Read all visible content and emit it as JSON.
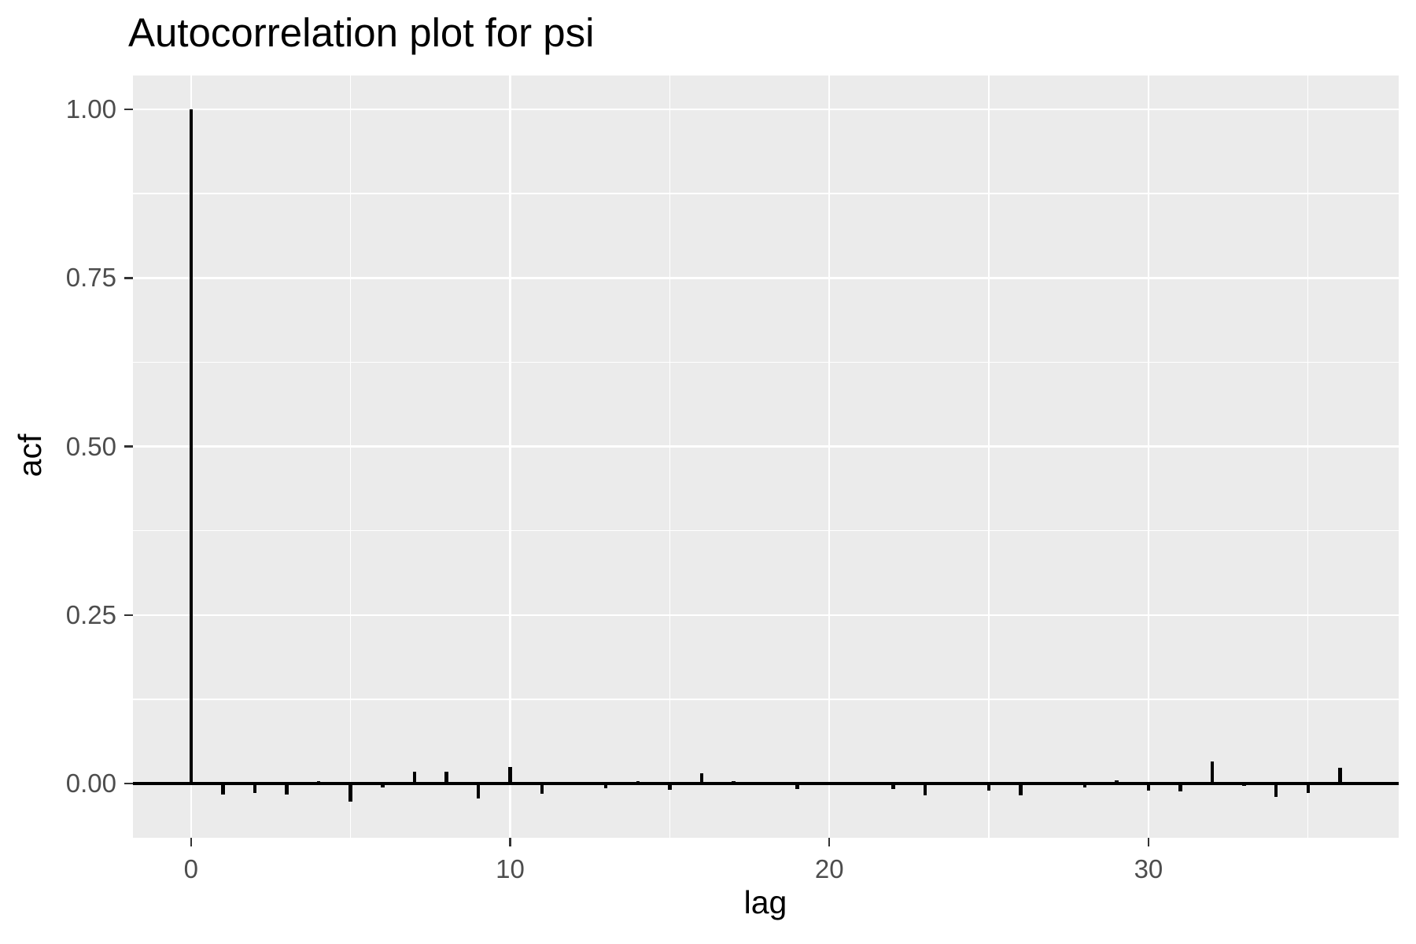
{
  "title": "Autocorrelation plot for psi",
  "chart_data": {
    "type": "bar",
    "title": "Autocorrelation plot for psi",
    "xlabel": "lag",
    "ylabel": "acf",
    "x": [
      0,
      1,
      2,
      3,
      4,
      5,
      6,
      7,
      8,
      9,
      10,
      11,
      12,
      13,
      14,
      15,
      16,
      17,
      18,
      19,
      20,
      21,
      22,
      23,
      24,
      25,
      26,
      27,
      28,
      29,
      30,
      31,
      32,
      33,
      34,
      35,
      36
    ],
    "values": [
      1.0,
      -0.016,
      -0.014,
      -0.016,
      0.004,
      -0.027,
      -0.006,
      0.017,
      0.018,
      -0.022,
      0.025,
      -0.015,
      0.0,
      -0.007,
      0.004,
      -0.009,
      0.015,
      0.003,
      0.0,
      -0.008,
      0.0,
      0.0,
      -0.008,
      -0.017,
      0.0,
      -0.011,
      -0.017,
      0.0,
      -0.006,
      0.005,
      -0.011,
      -0.012,
      0.033,
      -0.003,
      -0.02,
      -0.014,
      0.023
    ],
    "xlim": [
      -1.82,
      37.84
    ],
    "ylim": [
      -0.0805,
      1.0502
    ],
    "x_major_ticks": [
      0,
      10,
      20,
      30
    ],
    "x_tick_labels": [
      "0",
      "10",
      "20",
      "30"
    ],
    "x_minor_ticks": [
      5,
      15,
      25,
      35
    ],
    "y_major_ticks": [
      0.0,
      0.25,
      0.5,
      0.75,
      1.0
    ],
    "y_tick_labels": [
      "0.00",
      "0.25",
      "0.50",
      "0.75",
      "1.00"
    ],
    "y_minor_ticks": [
      0.125,
      0.375,
      0.625,
      0.875
    ],
    "grid": true,
    "legend": "none",
    "zero_line": true
  },
  "colors": {
    "panel_background": "#EBEBEB",
    "grid": "#FFFFFF",
    "bar": "#000000",
    "zero_line": "#000000",
    "axis_text": "#4D4D4D",
    "tick_mark": "#333333",
    "title_text": "#000000"
  }
}
